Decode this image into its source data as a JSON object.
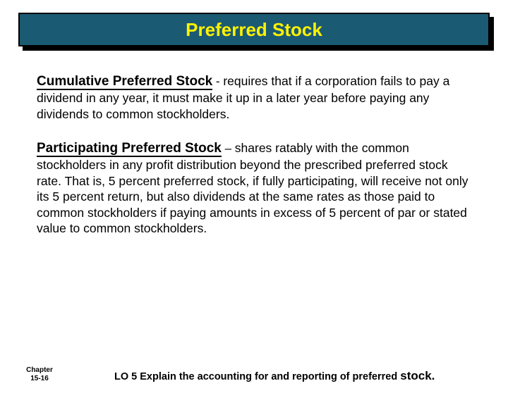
{
  "colors": {
    "banner_bg": "#1b5a73",
    "banner_border": "#000000",
    "banner_shadow": "#000000",
    "title_text": "#fef200",
    "body_text": "#000000",
    "page_bg": "#ffffff"
  },
  "title": "Preferred Stock",
  "paragraphs": [
    {
      "term": "Cumulative Preferred Stock",
      "dash": " - ",
      "body": "requires that if a corporation fails to pay a dividend in any year, it must make it up in a later year before paying any dividends to common stockholders."
    },
    {
      "term": "Participating Preferred Stock",
      "dash": " – ",
      "body": "shares ratably with the common stockholders in any profit distribution beyond the prescribed preferred stock rate.   That is, 5 percent preferred stock, if fully participating, will receive not only its 5 percent return, but also dividends at the same rates as those paid to common stockholders if paying amounts in excess of 5 percent of par or stated value to common stockholders."
    }
  ],
  "footer": {
    "chapter_line1": "Chapter",
    "chapter_line2": "15-16",
    "lo_prefix": "LO 5 Explain the accounting for and reporting of preferred ",
    "lo_stock": "stock."
  },
  "typography": {
    "title_fontsize": 26,
    "term_fontsize": 19,
    "body_fontsize": 17.5,
    "chapter_fontsize": 10,
    "lo_fontsize": 14.5,
    "font_family": "Comic Sans MS"
  }
}
